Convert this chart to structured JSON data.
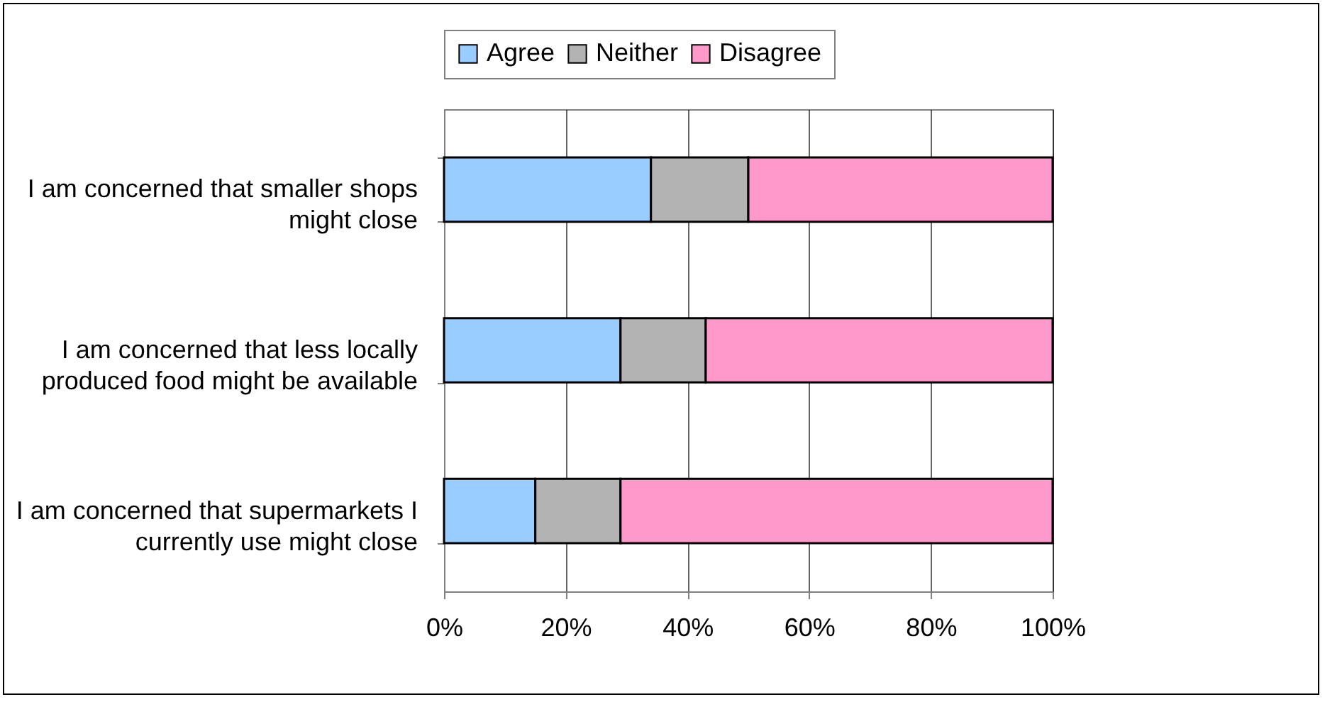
{
  "chart_data": {
    "type": "bar",
    "orientation": "horizontal",
    "stacked": true,
    "categories": [
      "I am concerned that smaller shops might close",
      "I am concerned that less locally produced food might be available",
      "I am concerned that supermarkets I currently use might close"
    ],
    "series": [
      {
        "name": "Agree",
        "color": "#99ccff",
        "values": [
          34,
          29,
          15
        ]
      },
      {
        "name": "Neither",
        "color": "#b3b3b3",
        "values": [
          16,
          14,
          14
        ]
      },
      {
        "name": "Disagree",
        "color": "#ff99cc",
        "values": [
          50,
          57,
          71
        ]
      }
    ],
    "xlim": [
      0,
      100
    ],
    "xticks": [
      {
        "value": 0,
        "label": "0%"
      },
      {
        "value": 20,
        "label": "20%"
      },
      {
        "value": 40,
        "label": "40%"
      },
      {
        "value": 60,
        "label": "60%"
      },
      {
        "value": 80,
        "label": "80%"
      },
      {
        "value": 100,
        "label": "100%"
      }
    ],
    "grid": "x",
    "legend": "top"
  }
}
